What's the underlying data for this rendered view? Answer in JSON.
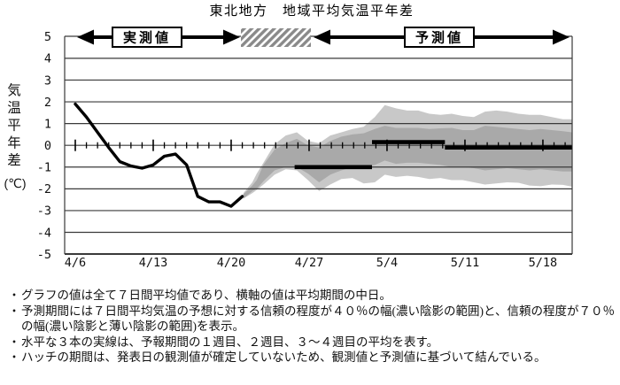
{
  "title": "東北地方　地域平均気温平年差",
  "bullet_char": "・",
  "header": {
    "observed_label": "実測値",
    "forecast_label": "予測値"
  },
  "colors": {
    "band70_light": "#c8c8c8",
    "band40_dark": "#a9a9a9",
    "line": "#000000",
    "grid": "#3a3a3a",
    "hatch_stripe": "#8a8a8a",
    "background": "#ffffff"
  },
  "chart_data": {
    "type": "line",
    "title": "東北地方　地域平均気温平年差",
    "ylabel_vertical": "気温平年差",
    "ylabel_unit": "(℃)",
    "ylim": [
      -5,
      5
    ],
    "grid": true,
    "y_ticks": [
      5,
      4,
      3,
      2,
      1,
      0,
      -1,
      -2,
      -3,
      -4,
      -5
    ],
    "x_tick_labels": [
      "4/6",
      "4/13",
      "4/20",
      "4/27",
      "5/4",
      "5/11",
      "5/18"
    ],
    "x_tick_days": [
      0,
      7,
      14,
      21,
      28,
      35,
      42
    ],
    "days_shown": 44.6,
    "observed_series": {
      "name": "実測値(7日間平均)",
      "points": [
        [
          0,
          1.9
        ],
        [
          1,
          1.3
        ],
        [
          2,
          0.6
        ],
        [
          3,
          -0.1
        ],
        [
          4,
          -0.75
        ],
        [
          5,
          -0.95
        ],
        [
          6,
          -1.05
        ],
        [
          7,
          -0.9
        ],
        [
          8,
          -0.5
        ],
        [
          9,
          -0.4
        ],
        [
          10,
          -0.9
        ],
        [
          11,
          -2.35
        ],
        [
          12,
          -2.6
        ],
        [
          13,
          -2.6
        ],
        [
          14,
          -2.8
        ],
        [
          15,
          -2.35
        ]
      ]
    },
    "hatch_period_days": [
      15,
      21
    ],
    "forecast_mean_lines": [
      {
        "label": "1週目平均",
        "d_start": 19.7,
        "d_end": 26.65,
        "value": -1.0
      },
      {
        "label": "2週目平均",
        "d_start": 26.65,
        "d_end": 33.2,
        "value": 0.15
      },
      {
        "label": "3～4週目平均",
        "d_start": 33.2,
        "d_end": 44.6,
        "value": -0.1
      }
    ],
    "confidence_70pct_band": [
      [
        15.1,
        -2.2,
        -2.45
      ],
      [
        15.9,
        -1.7,
        -2.2
      ],
      [
        16.3,
        -1.3,
        -2.05
      ],
      [
        16.9,
        -0.8,
        -1.8
      ],
      [
        17.9,
        0.05,
        -1.35
      ],
      [
        18.9,
        0.45,
        -1.1
      ],
      [
        19.9,
        0.6,
        -1.15
      ],
      [
        20.9,
        0.2,
        -1.6
      ],
      [
        21.9,
        0.1,
        -2.1
      ],
      [
        22.9,
        0.45,
        -1.8
      ],
      [
        23.9,
        0.6,
        -1.55
      ],
      [
        24.9,
        0.75,
        -1.5
      ],
      [
        25.9,
        0.85,
        -1.75
      ],
      [
        26.9,
        1.3,
        -1.7
      ],
      [
        27.8,
        1.85,
        -1.35
      ],
      [
        28.8,
        1.7,
        -1.45
      ],
      [
        29.8,
        1.6,
        -1.4
      ],
      [
        30.8,
        1.6,
        -1.45
      ],
      [
        31.8,
        1.45,
        -1.55
      ],
      [
        32.8,
        1.4,
        -1.5
      ],
      [
        33.8,
        1.45,
        -1.6
      ],
      [
        34.8,
        1.35,
        -1.6
      ],
      [
        35.8,
        1.3,
        -1.7
      ],
      [
        36.8,
        1.55,
        -1.8
      ],
      [
        37.8,
        1.6,
        -1.75
      ],
      [
        38.8,
        1.55,
        -1.7
      ],
      [
        39.8,
        1.45,
        -1.72
      ],
      [
        40.8,
        1.4,
        -1.85
      ],
      [
        41.8,
        1.4,
        -1.88
      ],
      [
        42.8,
        1.3,
        -1.8
      ],
      [
        43.8,
        1.2,
        -1.82
      ],
      [
        44.6,
        1.2,
        -1.9
      ]
    ],
    "confidence_40pct_band": [
      [
        15.1,
        -2.25,
        -2.45
      ],
      [
        15.9,
        -1.85,
        -2.1
      ],
      [
        16.3,
        -1.6,
        -2.0
      ],
      [
        16.9,
        -0.9,
        -1.65
      ],
      [
        17.9,
        -0.2,
        -1.15
      ],
      [
        18.9,
        0.1,
        -1.0
      ],
      [
        19.9,
        0.3,
        -1.0
      ],
      [
        20.9,
        0.0,
        -1.3
      ],
      [
        21.9,
        -0.1,
        -1.7
      ],
      [
        22.9,
        0.2,
        -1.35
      ],
      [
        23.9,
        0.4,
        -1.15
      ],
      [
        24.9,
        0.5,
        -1.0
      ],
      [
        25.9,
        0.55,
        -1.0
      ],
      [
        26.9,
        0.75,
        -0.9
      ],
      [
        27.8,
        0.9,
        -0.7
      ],
      [
        28.8,
        0.8,
        -0.85
      ],
      [
        29.8,
        0.8,
        -0.8
      ],
      [
        30.8,
        0.8,
        -0.8
      ],
      [
        31.8,
        0.75,
        -0.85
      ],
      [
        32.8,
        0.78,
        -0.9
      ],
      [
        33.8,
        0.8,
        -1.0
      ],
      [
        34.8,
        0.7,
        -1.0
      ],
      [
        35.8,
        0.7,
        -1.05
      ],
      [
        36.8,
        0.9,
        -1.15
      ],
      [
        37.8,
        0.85,
        -1.1
      ],
      [
        38.8,
        0.8,
        -1.05
      ],
      [
        39.8,
        0.75,
        -1.1
      ],
      [
        40.8,
        0.7,
        -1.15
      ],
      [
        41.8,
        0.75,
        -1.1
      ],
      [
        42.8,
        0.7,
        -1.15
      ],
      [
        43.8,
        0.65,
        -1.2
      ],
      [
        44.6,
        0.6,
        -1.2
      ]
    ]
  },
  "notes": [
    "グラフの値は全て７日間平均値であり、横軸の値は平均期間の中日。",
    "予測期間には７日間平均気温の予想に対する信頼の程度が４０％の幅(濃い陰影の範囲)と、信頼の程度が７０％の幅(濃い陰影と薄い陰影の範囲)を表示。",
    "水平な３本の実線は、予報期間の１週目、２週目、３～４週目の平均を表す。",
    "ハッチの期間は、発表日の観測値が確定していないため、観測値と予測値に基づいて結んでいる。"
  ]
}
